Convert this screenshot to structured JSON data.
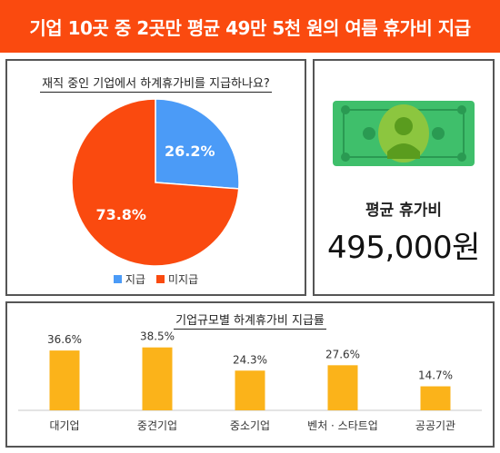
{
  "header": {
    "title": "기업 10곳 중 2곳만 평균 49만 5천 원의 여름 휴가비 지급"
  },
  "colors": {
    "header_bg": "#fa4a0f",
    "pie_paid": "#4b9bf7",
    "pie_unpaid": "#fa4a0f",
    "bar": "#fbb31a",
    "money_green": "#3fbf6b",
    "money_dark": "#7bbd2f"
  },
  "avg_panel": {
    "label": "평균 휴가비",
    "value": "495,000원",
    "icon": "money-bill-icon"
  },
  "chart_data": [
    {
      "type": "pie",
      "title": "재직 중인 기업에서 하계휴가비를 지급하나요?",
      "categories": [
        "지급",
        "미지급"
      ],
      "values": [
        26.2,
        73.8
      ],
      "labels": [
        "26.2%",
        "73.8%"
      ],
      "legend_placement": "bottom"
    },
    {
      "type": "bar",
      "title": "기업규모별 하계휴가비 지급률",
      "categories": [
        "대기업",
        "중견기업",
        "중소기업",
        "벤처 · 스타트업",
        "공공기관"
      ],
      "values": [
        36.6,
        38.5,
        24.3,
        27.6,
        14.7
      ],
      "labels": [
        "36.6%",
        "38.5%",
        "24.3%",
        "27.6%",
        "14.7%"
      ],
      "ylim": [
        0,
        50
      ],
      "grid": false
    }
  ]
}
